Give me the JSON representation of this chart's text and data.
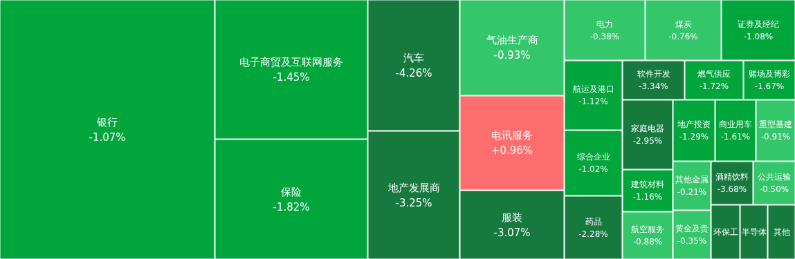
{
  "chart_data": {
    "type": "other",
    "categories": [
      "银行",
      "电子商贸及互联网服务",
      "保险",
      "汽车",
      "地产发展商",
      "气油生产商",
      "电讯服务",
      "服装",
      "电力",
      "煤炭",
      "证券及经纪",
      "航运及港口",
      "综合企业",
      "药品",
      "软件开发",
      "燃气供应",
      "家庭电器",
      "赌场及博彩",
      "航空服务",
      "地产投资",
      "建筑材料",
      "其他金属",
      "酒精饮料",
      "商业用车",
      "公共运输",
      "重型基建",
      "黄金及贵",
      "环保工",
      "半导体",
      "其他"
    ],
    "values": [
      -1.07,
      -1.45,
      -1.82,
      -4.26,
      -3.25,
      -0.93,
      0.96,
      -3.07,
      -0.38,
      -0.76,
      -1.08,
      -1.12,
      -1.02,
      -2.28,
      -3.34,
      -1.72,
      -2.95,
      -1.67,
      -0.88,
      -1.29,
      -1.16,
      -0.21,
      -3.68,
      -1.61,
      -0.5,
      -0.91,
      -0.35,
      null,
      null,
      null
    ],
    "value_labels": [
      "-1.07%",
      "-1.45%",
      "-1.82%",
      "-4.26%",
      "-3.25%",
      "-0.93%",
      "+0.96%",
      "-3.07%",
      "-0.38%",
      "-0.76%",
      "-1.08%",
      "-1.12%",
      "-1.02%",
      "-2.28%",
      "-3.34%",
      "-1.72%",
      "-2.95%",
      "-1.67%",
      "-0.88%",
      "-1.29%",
      "-1.16%",
      "-0.21%",
      "-3.68%",
      "-1.61%",
      "-0.50%",
      "-0.91%",
      "-0.35%",
      null,
      null,
      null
    ],
    "colors": [
      "#00a63c",
      "#00a63c",
      "#00a63c",
      "#167a3f",
      "#167a3f",
      "#33c66a",
      "#ff6e6e",
      "#167a3f",
      "#33c66a",
      "#33c66a",
      "#00a63c",
      "#00a63c",
      "#00a63c",
      "#167a3f",
      "#167a3f",
      "#00a63c",
      "#167a3f",
      "#00a63c",
      "#33c66a",
      "#00a63c",
      "#00a63c",
      "#33c66a",
      "#167a3f",
      "#00a63c",
      "#33c66a",
      "#33c66a",
      "#33c66a",
      "#167a3f",
      "#167a3f",
      "#167a3f"
    ]
  }
}
